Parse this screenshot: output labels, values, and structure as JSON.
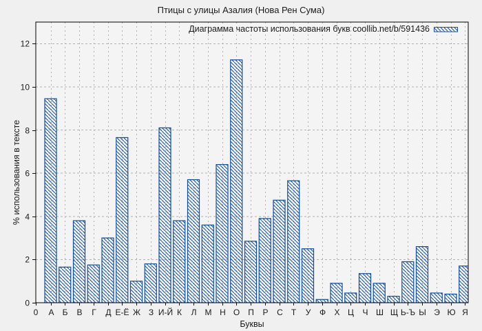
{
  "chart_data": {
    "type": "bar",
    "title": "Птицы с улицы Азалия (Нова Рен Сума)",
    "legend": "Диаграмма частоты использования букв coollib.net/b/591436",
    "legend_position": "top-right",
    "xlabel": "Буквы",
    "ylabel": "% использования в тексте",
    "x_origin_label": "0",
    "categories": [
      "А",
      "Б",
      "В",
      "Г",
      "Д",
      "Е-Ё",
      "Ж",
      "З",
      "И-Й",
      "К",
      "Л",
      "М",
      "Н",
      "О",
      "П",
      "Р",
      "С",
      "Т",
      "У",
      "Ф",
      "Х",
      "Ц",
      "Ч",
      "Ш",
      "Щ",
      "Ь-Ъ",
      "Ы",
      "Э",
      "Ю",
      "Я"
    ],
    "values": [
      9.45,
      1.65,
      3.8,
      1.75,
      3.0,
      7.65,
      1.0,
      1.8,
      8.1,
      3.8,
      5.7,
      3.6,
      6.4,
      11.25,
      2.85,
      3.9,
      4.75,
      5.65,
      2.5,
      0.15,
      0.9,
      0.45,
      1.35,
      0.9,
      0.3,
      1.9,
      2.6,
      0.45,
      0.4,
      1.7
    ],
    "ylim": [
      0,
      13
    ],
    "yticks": [
      0,
      2,
      4,
      6,
      8,
      10,
      12
    ],
    "grid": true,
    "hatch": "diagonal-backslash",
    "colors": {
      "bar_outline": "#0f4d9f",
      "plot_background": "#f4f4f4",
      "figure_background": "#f0f0f0",
      "grid": "#b0b0b0",
      "axis": "#000000",
      "text": "#1a1a1a"
    }
  }
}
